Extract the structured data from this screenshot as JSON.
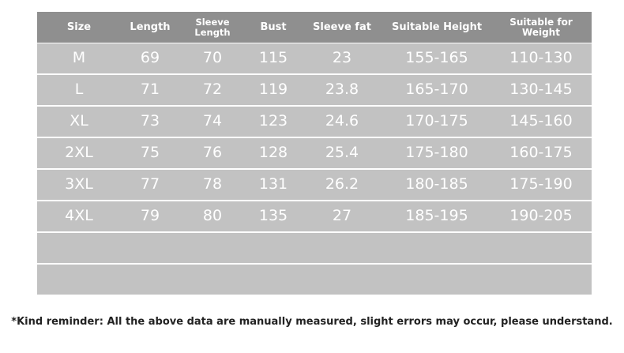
{
  "headers": [
    "Size",
    "Length",
    "Sleeve Length",
    "Bust",
    "Sleeve fat",
    "Suitable Height",
    "Suitable for Weight"
  ],
  "rows": [
    [
      "M",
      "69",
      "70",
      "115",
      "23",
      "155-165",
      "110-130"
    ],
    [
      "L",
      "71",
      "72",
      "119",
      "23.8",
      "165-170",
      "130-145"
    ],
    [
      "XL",
      "73",
      "74",
      "123",
      "24.6",
      "170-175",
      "145-160"
    ],
    [
      "2XL",
      "75",
      "76",
      "128",
      "25.4",
      "175-180",
      "160-175"
    ],
    [
      "3XL",
      "77",
      "78",
      "131",
      "26.2",
      "180-185",
      "175-190"
    ],
    [
      "4XL",
      "79",
      "80",
      "135",
      "27",
      "185-195",
      "190-205"
    ],
    [
      "",
      "",
      "",
      "",
      "",
      "",
      ""
    ],
    [
      "",
      "",
      "",
      "",
      "",
      "",
      ""
    ]
  ],
  "note": "*Kind reminder: All the above data are manually measured, slight errors may occur, please understand.",
  "colors": {
    "header_bg": "#8f8f8f",
    "row_bg": "#c2c2c2",
    "text": "#ffffff"
  }
}
